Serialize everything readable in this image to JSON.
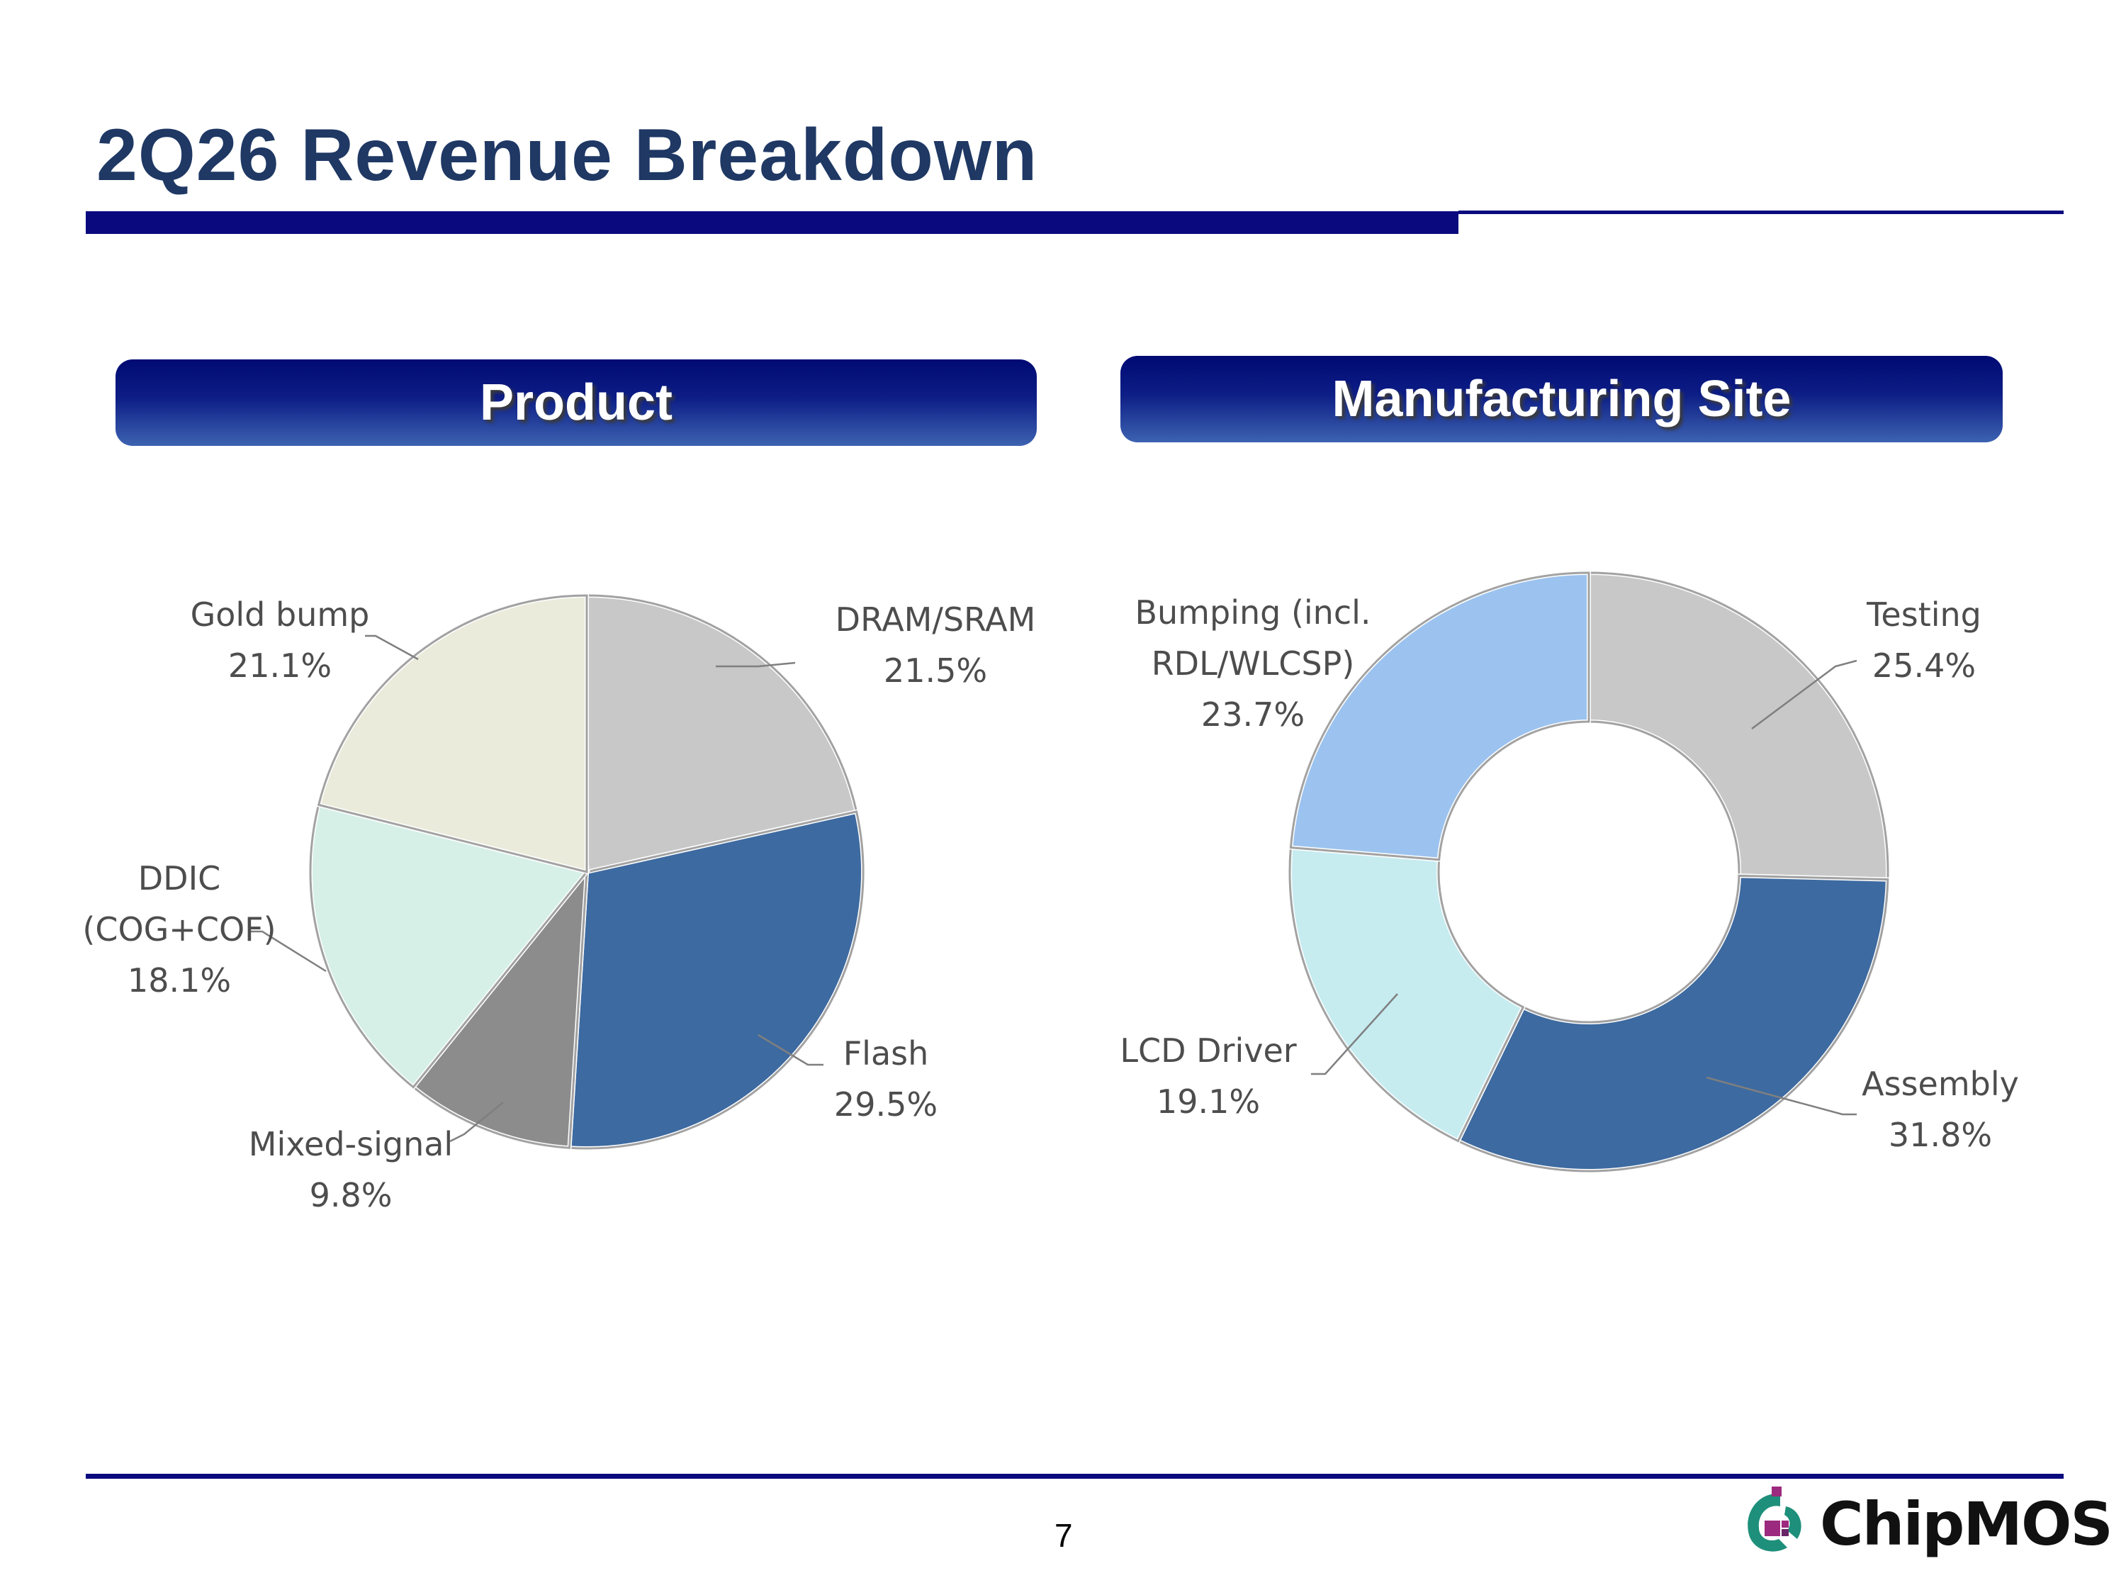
{
  "slide": {
    "title": "2Q26 Revenue Breakdown",
    "page_number": "7",
    "logo_text": "ChipMOS"
  },
  "colors": {
    "title": "#1f3864",
    "bars": "#0a0a7e",
    "header_gradient": [
      "#000a73",
      "#3d63b1"
    ],
    "logo_teal": "#1e8f7a",
    "logo_magenta": "#9c2a7e"
  },
  "sections": {
    "product": "Product",
    "site": "Manufacturing Site"
  },
  "chart_data": [
    {
      "type": "pie",
      "title": "Product",
      "slices": [
        {
          "label": "DRAM/SRAM",
          "value": 21.5,
          "display": "21.5%",
          "color": "#c8c8c8"
        },
        {
          "label": "Flash",
          "value": 29.5,
          "display": "29.5%",
          "color": "#3d6aa0"
        },
        {
          "label": "Mixed-signal",
          "value": 9.8,
          "display": "9.8%",
          "color": "#8c8c8c"
        },
        {
          "label": "DDIC (COG+COF)",
          "value": 18.1,
          "display": "18.1%",
          "color": "#d6f0e8"
        },
        {
          "label": "Gold bump",
          "value": 21.1,
          "display": "21.1%",
          "color": "#ebebdc"
        }
      ],
      "label_lines": {
        "DRAM/SRAM": [
          "DRAM/SRAM",
          "21.5%"
        ],
        "Flash": [
          "Flash",
          "29.5%"
        ],
        "Mixed-signal": [
          "Mixed-signal",
          "9.8%"
        ],
        "DDIC (COG+COF)": [
          "DDIC",
          "(COG+COF)",
          "18.1%"
        ],
        "Gold bump": [
          "Gold bump",
          "21.1%"
        ]
      }
    },
    {
      "type": "pie",
      "donut": true,
      "title": "Manufacturing Site",
      "slices": [
        {
          "label": "Testing",
          "value": 25.4,
          "display": "25.4%",
          "color": "#c8c8c8"
        },
        {
          "label": "Assembly",
          "value": 31.8,
          "display": "31.8%",
          "color": "#3d6aa0"
        },
        {
          "label": "LCD Driver",
          "value": 19.1,
          "display": "19.1%",
          "color": "#c6ecf0"
        },
        {
          "label": "Bumping (incl. RDL/WLCSP)",
          "value": 23.7,
          "display": "23.7%",
          "color": "#9cc3ef"
        }
      ],
      "label_lines": {
        "Testing": [
          "Testing",
          "25.4%"
        ],
        "Assembly": [
          "Assembly",
          "31.8%"
        ],
        "LCD Driver": [
          "LCD Driver",
          "19.1%"
        ],
        "Bumping (incl. RDL/WLCSP)": [
          "Bumping  (incl.",
          "RDL/WLCSP)",
          "23.7%"
        ]
      }
    }
  ]
}
